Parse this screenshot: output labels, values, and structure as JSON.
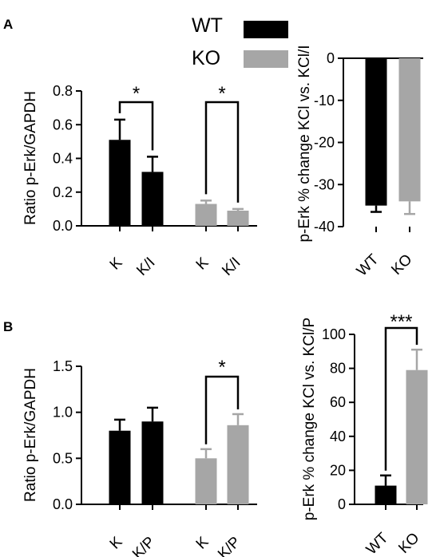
{
  "colors": {
    "wt": "#000000",
    "ko": "#a6a6a6",
    "axis": "#000000"
  },
  "legend": [
    {
      "label": "WT",
      "color": "#000000"
    },
    {
      "label": "KO",
      "color": "#a6a6a6"
    }
  ],
  "chart_data": [
    {
      "panel": "A",
      "type": "bar",
      "ylabel": "Ratio p-Erk/GAPDH",
      "ylim": [
        0,
        0.8
      ],
      "yticks": [
        "0.0",
        "0.2",
        "0.4",
        "0.6",
        "0.8"
      ],
      "bars": [
        {
          "label": "K",
          "group": "WT",
          "value": 0.51,
          "error": 0.12
        },
        {
          "label": "K/I",
          "group": "WT",
          "value": 0.32,
          "error": 0.09
        },
        {
          "label": "K",
          "group": "KO",
          "value": 0.13,
          "error": 0.02
        },
        {
          "label": "K/I",
          "group": "KO",
          "value": 0.09,
          "error": 0.01
        }
      ],
      "significance": [
        {
          "from": 0,
          "to": 1,
          "text": "*"
        },
        {
          "from": 2,
          "to": 3,
          "text": "*"
        }
      ]
    },
    {
      "panel": "A",
      "type": "bar",
      "ylabel": "p-Erk % change KCl vs. KCl/I",
      "ylim": [
        -40,
        0
      ],
      "yticks": [
        "0",
        "-10",
        "-20",
        "-30",
        "-40"
      ],
      "bars": [
        {
          "label": "WT",
          "group": "WT",
          "value": -35,
          "error": 1.5
        },
        {
          "label": "KO",
          "group": "KO",
          "value": -34,
          "error": 3
        }
      ],
      "significance": []
    },
    {
      "panel": "B",
      "type": "bar",
      "ylabel": "Ratio p-Erk/GAPDH",
      "ylim": [
        0,
        1.5
      ],
      "yticks": [
        "0.0",
        "0.5",
        "1.0",
        "1.5"
      ],
      "bars": [
        {
          "label": "K",
          "group": "WT",
          "value": 0.8,
          "error": 0.12
        },
        {
          "label": "K/P",
          "group": "WT",
          "value": 0.9,
          "error": 0.15
        },
        {
          "label": "K",
          "group": "KO",
          "value": 0.5,
          "error": 0.1
        },
        {
          "label": "K/P",
          "group": "KO",
          "value": 0.86,
          "error": 0.12
        }
      ],
      "significance": [
        {
          "from": 2,
          "to": 3,
          "text": "*"
        }
      ]
    },
    {
      "panel": "B",
      "type": "bar",
      "ylabel": "p-Erk % change KCl vs. KCl/P",
      "ylim": [
        0,
        100
      ],
      "yticks": [
        "0",
        "20",
        "40",
        "60",
        "80",
        "100"
      ],
      "bars": [
        {
          "label": "WT",
          "group": "WT",
          "value": 11,
          "error": 6
        },
        {
          "label": "KO",
          "group": "KO",
          "value": 79,
          "error": 12
        }
      ],
      "significance": [
        {
          "from": 0,
          "to": 1,
          "text": "***"
        }
      ]
    }
  ]
}
